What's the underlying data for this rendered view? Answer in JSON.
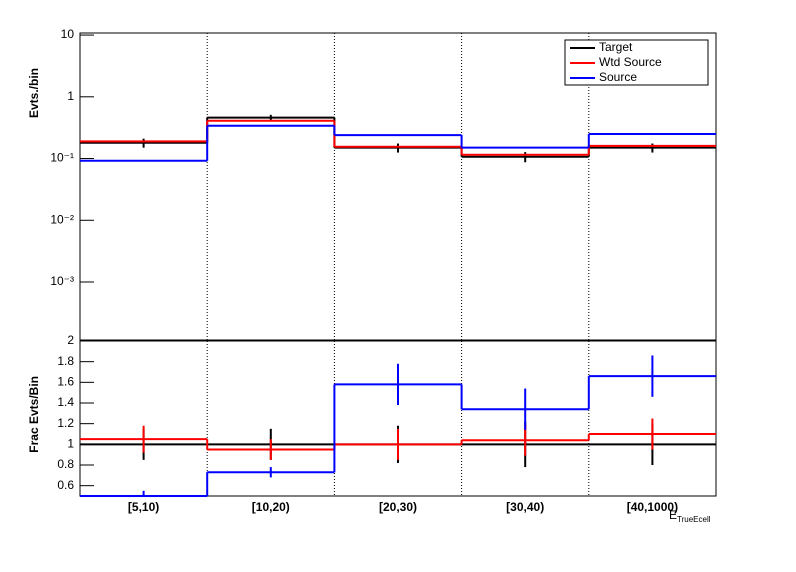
{
  "chart_data": [
    {
      "type": "step",
      "y_label": "Evts./bin",
      "log_y": true,
      "ylim": [
        0.000115,
        10.8
      ],
      "yticks": [
        {
          "value": 0.001,
          "label": "10⁻³"
        },
        {
          "value": 0.01,
          "label": "10⁻²"
        },
        {
          "value": 0.1,
          "label": "10⁻¹"
        },
        1,
        10
      ],
      "legend": "top-right",
      "series": [
        {
          "name": "Target",
          "color": "#000000",
          "values": [
            0.18,
            0.46,
            0.15,
            0.107,
            0.15
          ],
          "errors": [
            0.03,
            0.05,
            0.025,
            0.02,
            0.025
          ]
        },
        {
          "name": "Wtd Source",
          "color": "#ff0000",
          "values": [
            0.19,
            0.41,
            0.155,
            0.115,
            0.16
          ]
        },
        {
          "name": "Source",
          "color": "#0000ff",
          "values": [
            0.092,
            0.34,
            0.24,
            0.15,
            0.25
          ]
        }
      ]
    },
    {
      "type": "step",
      "y_label": "Frac Evts/Bin",
      "x_label": "E",
      "x_label_sub": "TrueEcell",
      "categories": [
        "[5,10)",
        "[10,20)",
        "[20,30)",
        "[30,40)",
        "[40,1000)"
      ],
      "ylim": [
        0.5,
        2
      ],
      "yticks": [
        0.6,
        0.8,
        1,
        1.2,
        1.4,
        1.6,
        1.8,
        2
      ],
      "series": [
        {
          "name": "Target",
          "color": "#000000",
          "values": [
            1,
            1,
            1,
            1,
            1
          ],
          "errors": [
            0.15,
            0.15,
            0.18,
            0.22,
            0.2
          ]
        },
        {
          "name": "Wtd Source",
          "color": "#ff0000",
          "values": [
            1.05,
            0.95,
            1.0,
            1.04,
            1.1
          ],
          "errors": [
            0.13,
            0.1,
            0.15,
            0.15,
            0.15
          ]
        },
        {
          "name": "Source",
          "color": "#0000ff",
          "values": [
            0.5,
            0.73,
            1.58,
            1.34,
            1.66
          ],
          "errors": [
            0.05,
            0.05,
            0.2,
            0.2,
            0.2
          ]
        }
      ]
    }
  ]
}
